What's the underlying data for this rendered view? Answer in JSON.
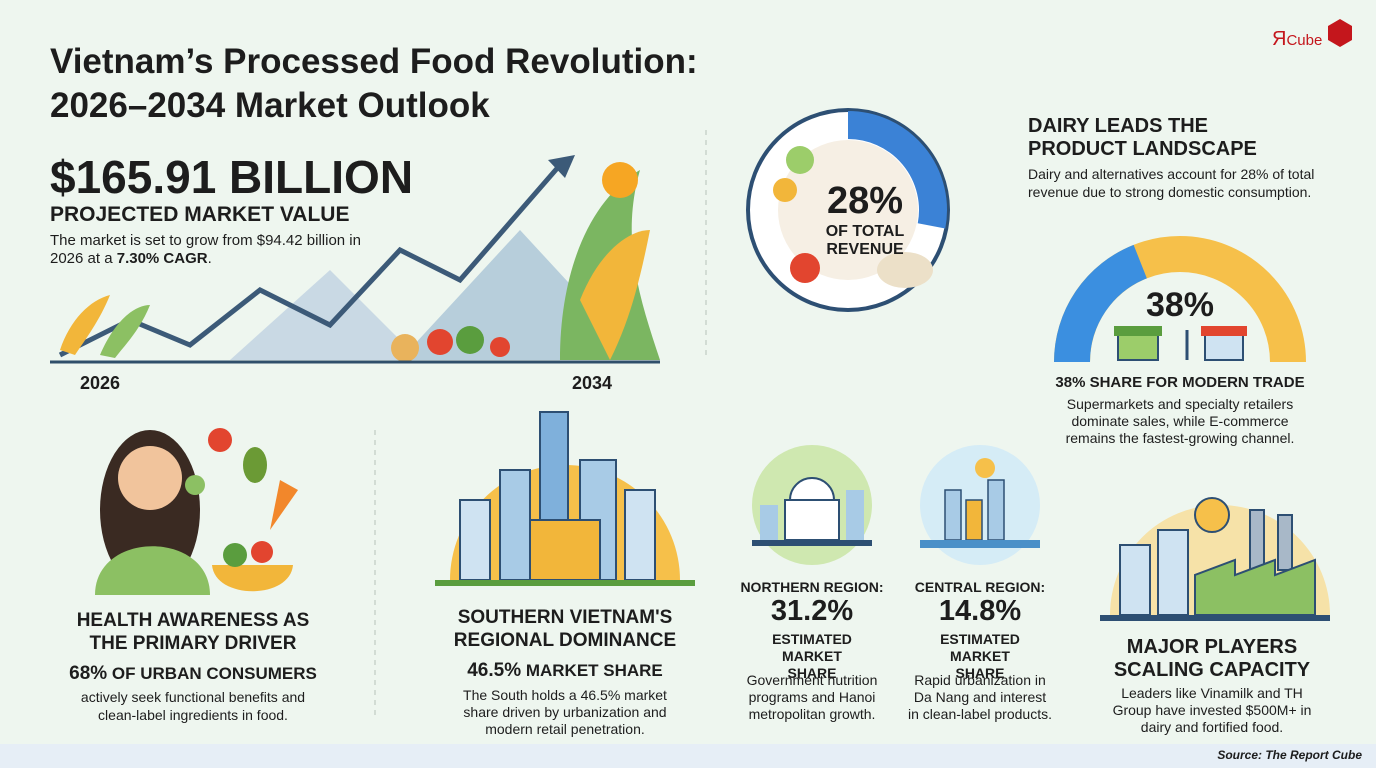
{
  "logo": {
    "mark": "Я",
    "text": "Cube"
  },
  "header": {
    "title_line1": "Vietnam’s Processed Food Revolution:",
    "title_line2": "2026–2034 Market Outlook"
  },
  "market": {
    "value": "$165.91 BILLION",
    "label": "PROJECTED MARKET VALUE",
    "desc": "The market is set to grow from $94.42 billion in 2026 at a",
    "desc_bold": "7.30% CAGR",
    "desc_end": ".",
    "start_year": "2026",
    "end_year": "2034"
  },
  "dairy": {
    "percent": {
      "value": 28,
      "label": "28%"
    },
    "percent_caption": "OF TOTAL REVENUE",
    "title": "DAIRY LEADS THE PRODUCT LANDSCAPE",
    "desc": "Dairy and alternatives account for 28% of total revenue due to strong domestic consumption."
  },
  "modern_trade": {
    "percent": {
      "value": 38,
      "label": "38%"
    },
    "title": "38% SHARE FOR MODERN TRADE",
    "desc": "Supermarkets and specialty retailers dominate sales, while E-commerce remains the fastest-growing channel."
  },
  "health": {
    "title": "HEALTH AWARENESS AS THE PRIMARY DRIVER",
    "stat": "68%",
    "stat_label": "OF URBAN CONSUMERS",
    "desc": "actively seek functional benefits and clean-label ingredients in food."
  },
  "southern": {
    "title": "SOUTHERN VIETNAM'S REGIONAL DOMINANCE",
    "stat": "46.5%",
    "stat_label": "MARKET SHARE",
    "desc": "The South holds a 46.5% market share driven by urbanization and modern retail penetration."
  },
  "northern": {
    "label": "NORTHERN REGION:",
    "value": "31.2%",
    "caption": "ESTIMATED MARKET SHARE",
    "desc": "Government nutrition programs and Hanoi metropolitan growth."
  },
  "central": {
    "label": "CENTRAL REGION:",
    "value": "14.8%",
    "caption": "ESTIMATED MARKET SHARE",
    "desc": "Rapid urbanization in Da Nang and interest in clean-label products."
  },
  "players": {
    "title": "MAJOR PLAYERS SCALING CAPACITY",
    "desc": "Leaders like Vinamilk and TH Group have invested $500M+ in dairy and fortified food."
  },
  "source": "Source: The Report Cube"
}
